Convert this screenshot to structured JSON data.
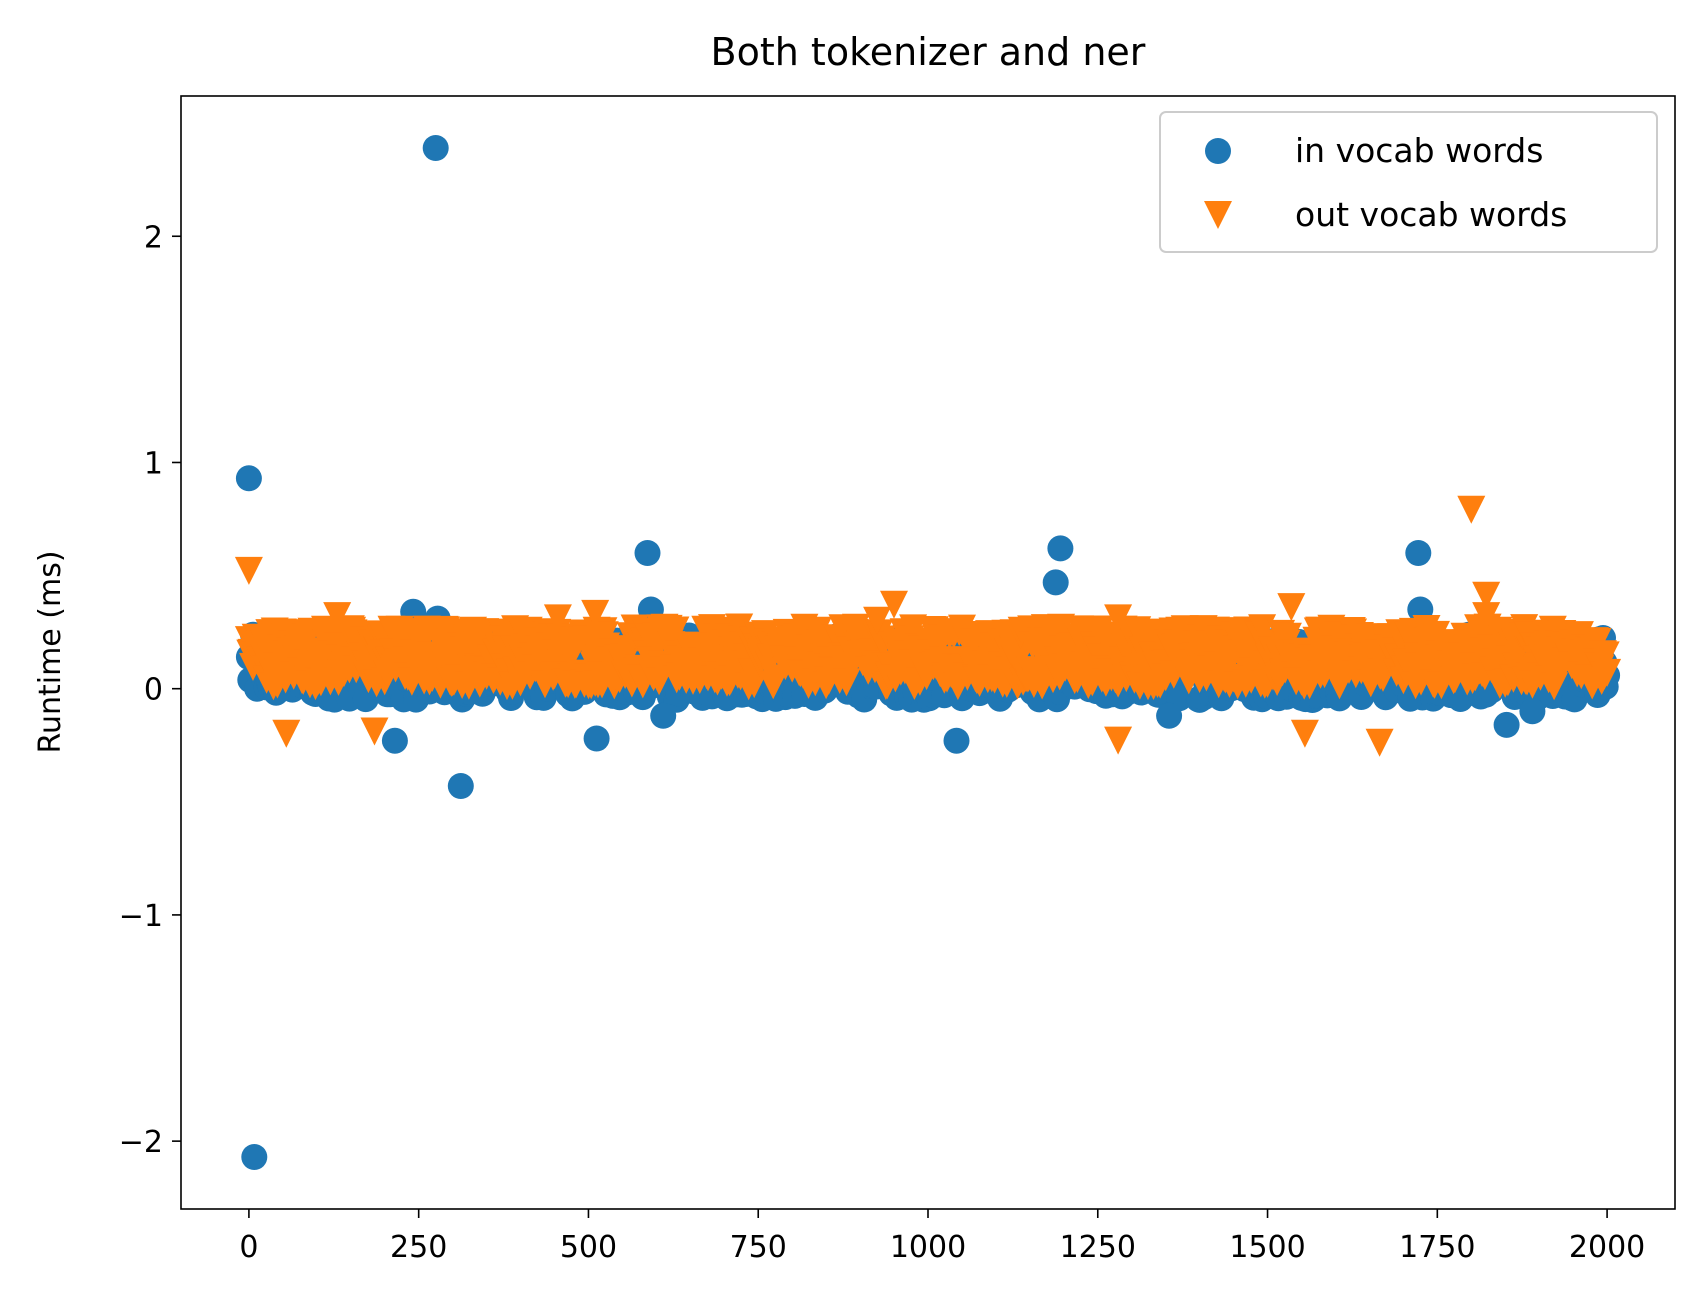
{
  "chart_data": {
    "type": "scatter",
    "title": "Both tokenizer and ner",
    "xlabel": "",
    "ylabel": "Runtime (ms)",
    "xlim": [
      -100,
      2100
    ],
    "ylim": [
      -2.3,
      2.62
    ],
    "xticks": [
      0,
      250,
      500,
      750,
      1000,
      1250,
      1500,
      1750,
      2000
    ],
    "xtick_labels": [
      "0",
      "250",
      "500",
      "750",
      "1000",
      "1250",
      "1500",
      "1750",
      "2000"
    ],
    "yticks": [
      -2,
      -1,
      0,
      1,
      2
    ],
    "ytick_labels": [
      "−2",
      "−1",
      "0",
      "1",
      "2"
    ],
    "grid": false,
    "legend_position": "top-right",
    "series": [
      {
        "name": "in vocab words",
        "marker": "circle",
        "color": "#1f77b4",
        "x_range": [
          0,
          2000
        ],
        "band_low": -0.05,
        "band_high": 0.24,
        "highlighted_points": [
          {
            "x": 0,
            "y": 0.93
          },
          {
            "x": 8,
            "y": -2.07
          },
          {
            "x": 275,
            "y": 2.39
          },
          {
            "x": 312,
            "y": -0.43
          },
          {
            "x": 215,
            "y": -0.23
          },
          {
            "x": 242,
            "y": 0.34
          },
          {
            "x": 278,
            "y": 0.31
          },
          {
            "x": 512,
            "y": -0.22
          },
          {
            "x": 587,
            "y": 0.6
          },
          {
            "x": 592,
            "y": 0.35
          },
          {
            "x": 610,
            "y": -0.12
          },
          {
            "x": 1042,
            "y": -0.23
          },
          {
            "x": 1188,
            "y": 0.47
          },
          {
            "x": 1195,
            "y": 0.62
          },
          {
            "x": 1355,
            "y": -0.12
          },
          {
            "x": 1722,
            "y": 0.6
          },
          {
            "x": 1725,
            "y": 0.35
          },
          {
            "x": 1852,
            "y": -0.16
          },
          {
            "x": 1890,
            "y": -0.1
          }
        ]
      },
      {
        "name": "out vocab words",
        "marker": "triangle-down",
        "color": "#ff7f0e",
        "x_range": [
          0,
          2000
        ],
        "band_low": 0.02,
        "band_high": 0.28,
        "highlighted_points": [
          {
            "x": 0,
            "y": 0.53
          },
          {
            "x": 55,
            "y": -0.19
          },
          {
            "x": 185,
            "y": -0.18
          },
          {
            "x": 130,
            "y": 0.33
          },
          {
            "x": 455,
            "y": 0.32
          },
          {
            "x": 510,
            "y": 0.34
          },
          {
            "x": 925,
            "y": 0.31
          },
          {
            "x": 950,
            "y": 0.38
          },
          {
            "x": 1280,
            "y": -0.22
          },
          {
            "x": 1280,
            "y": 0.32
          },
          {
            "x": 1535,
            "y": 0.37
          },
          {
            "x": 1555,
            "y": -0.19
          },
          {
            "x": 1665,
            "y": -0.23
          },
          {
            "x": 1800,
            "y": 0.8
          },
          {
            "x": 1822,
            "y": 0.42
          },
          {
            "x": 1822,
            "y": 0.33
          }
        ]
      }
    ]
  }
}
